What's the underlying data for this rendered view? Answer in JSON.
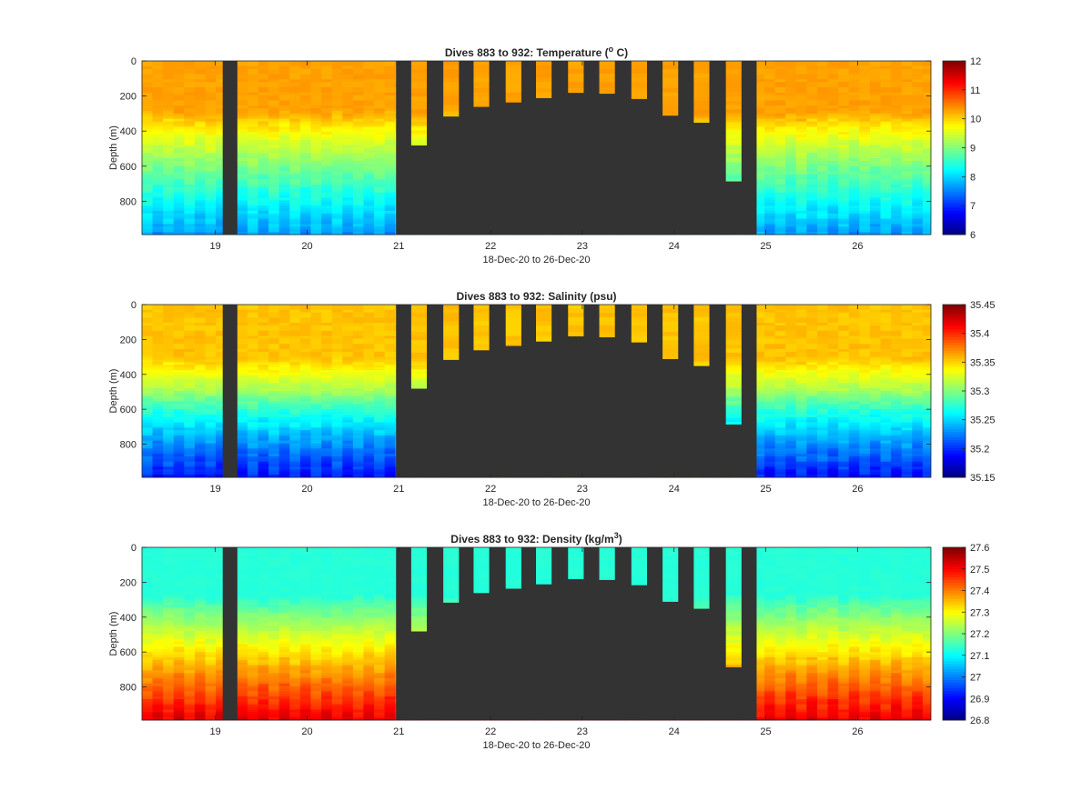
{
  "colors": {
    "no_data": "#333333",
    "axis": "#262626",
    "background": "#ffffff",
    "colormap": "jet"
  },
  "chart_data": [
    {
      "type": "heatmap",
      "title_prefix": "Dives 883 to 932: Temperature (",
      "title_sup": "o",
      "title_suffix": " C)",
      "xlabel": "18-Dec-20 to 26-Dec-20",
      "ylabel": "Depth (m)",
      "x_range": [
        18.2,
        26.8
      ],
      "x_ticks": [
        "19",
        "20",
        "21",
        "22",
        "23",
        "24",
        "25",
        "26"
      ],
      "y_range": [
        0,
        990
      ],
      "y_reversed": true,
      "y_ticks": [
        "0",
        "200",
        "400",
        "600",
        "800"
      ],
      "colorbar": {
        "range": [
          6,
          12
        ],
        "ticks": [
          "6",
          "7",
          "8",
          "9",
          "10",
          "11",
          "12"
        ]
      },
      "profile": {
        "surface": 10.3,
        "mixed_depth": 290,
        "deep": 7.8
      },
      "no_data_regions": [
        [
          19.08,
          19.24
        ],
        [
          20.97,
          24.9
        ]
      ],
      "dives": [
        {
          "day": 21.22,
          "max_depth": 480
        },
        {
          "day": 21.57,
          "max_depth": 315
        },
        {
          "day": 21.9,
          "max_depth": 260
        },
        {
          "day": 22.25,
          "max_depth": 235
        },
        {
          "day": 22.58,
          "max_depth": 210
        },
        {
          "day": 22.93,
          "max_depth": 180
        },
        {
          "day": 23.27,
          "max_depth": 185
        },
        {
          "day": 23.62,
          "max_depth": 215
        },
        {
          "day": 23.96,
          "max_depth": 310
        },
        {
          "day": 24.3,
          "max_depth": 350
        },
        {
          "day": 24.65,
          "max_depth": 685
        }
      ]
    },
    {
      "type": "heatmap",
      "title_prefix": "Dives 883 to 932: Salinity (psu)",
      "title_sup": "",
      "title_suffix": "",
      "xlabel": "18-Dec-20 to 26-Dec-20",
      "ylabel": "Depth (m)",
      "x_range": [
        18.2,
        26.8
      ],
      "x_ticks": [
        "19",
        "20",
        "21",
        "22",
        "23",
        "24",
        "25",
        "26"
      ],
      "y_range": [
        0,
        990
      ],
      "y_reversed": true,
      "y_ticks": [
        "0",
        "200",
        "400",
        "600",
        "800"
      ],
      "colorbar": {
        "range": [
          35.15,
          35.45
        ],
        "ticks": [
          "35.15",
          "35.2",
          "35.25",
          "35.3",
          "35.35",
          "35.4",
          "35.45"
        ]
      },
      "profile": {
        "surface": 35.355,
        "mixed_depth": 300,
        "mid": 35.31,
        "deep": 35.2
      },
      "no_data_regions": [
        [
          19.08,
          19.24
        ],
        [
          20.97,
          24.9
        ]
      ],
      "dives": [
        {
          "day": 21.22,
          "max_depth": 480
        },
        {
          "day": 21.57,
          "max_depth": 315
        },
        {
          "day": 21.9,
          "max_depth": 260
        },
        {
          "day": 22.25,
          "max_depth": 235
        },
        {
          "day": 22.58,
          "max_depth": 210
        },
        {
          "day": 22.93,
          "max_depth": 180
        },
        {
          "day": 23.27,
          "max_depth": 185
        },
        {
          "day": 23.62,
          "max_depth": 215
        },
        {
          "day": 23.96,
          "max_depth": 310
        },
        {
          "day": 24.3,
          "max_depth": 350
        },
        {
          "day": 24.65,
          "max_depth": 685
        }
      ]
    },
    {
      "type": "heatmap",
      "title_prefix": "Dives 883 to 932: Density (kg/m",
      "title_sup": "3",
      "title_suffix": ")",
      "xlabel": "18-Dec-20 to 26-Dec-20",
      "ylabel": "Depth (m)",
      "x_range": [
        18.2,
        26.8
      ],
      "x_ticks": [
        "19",
        "20",
        "21",
        "22",
        "23",
        "24",
        "25",
        "26"
      ],
      "y_range": [
        0,
        990
      ],
      "y_reversed": true,
      "y_ticks": [
        "0",
        "200",
        "400",
        "600",
        "800"
      ],
      "colorbar": {
        "range": [
          26.8,
          27.6
        ],
        "ticks": [
          "26.8",
          "26.9",
          "27",
          "27.1",
          "27.2",
          "27.3",
          "27.4",
          "27.5",
          "27.6"
        ]
      },
      "profile": {
        "surface": 27.13,
        "mixed_depth": 280,
        "deep": 27.5
      },
      "no_data_regions": [
        [
          19.08,
          19.24
        ],
        [
          20.97,
          24.9
        ]
      ],
      "dives": [
        {
          "day": 21.22,
          "max_depth": 480
        },
        {
          "day": 21.57,
          "max_depth": 315
        },
        {
          "day": 21.9,
          "max_depth": 260
        },
        {
          "day": 22.25,
          "max_depth": 235
        },
        {
          "day": 22.58,
          "max_depth": 210
        },
        {
          "day": 22.93,
          "max_depth": 180
        },
        {
          "day": 23.27,
          "max_depth": 185
        },
        {
          "day": 23.62,
          "max_depth": 215
        },
        {
          "day": 23.96,
          "max_depth": 310
        },
        {
          "day": 24.3,
          "max_depth": 350
        },
        {
          "day": 24.65,
          "max_depth": 685
        }
      ]
    }
  ]
}
